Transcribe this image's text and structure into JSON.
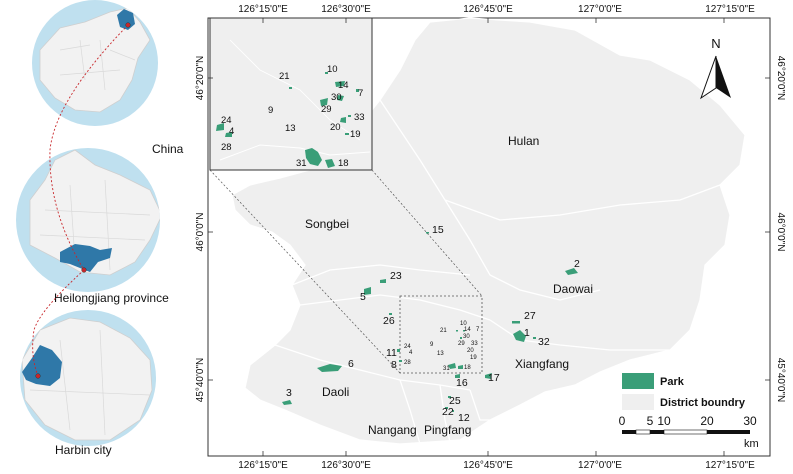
{
  "locator": {
    "china_label": "China",
    "province_label": "Heilongjiang province",
    "city_label": "Harbin city"
  },
  "axes": {
    "top_ticks": [
      "126°15'0\"E",
      "126°30'0\"E",
      "126°45'0\"E",
      "127°0'0\"E",
      "127°15'0\"E"
    ],
    "bottom_ticks": [
      "126°15'0\"E",
      "126°30'0\"E",
      "126°45'0\"E",
      "127°0'0\"E",
      "127°15'0\"E"
    ],
    "left_ticks": [
      "46°20'0\"N",
      "46°0'0\"N",
      "45°40'0\"N"
    ],
    "right_ticks": [
      "46°20'0\"N",
      "46°0'0\"N",
      "45°40'0\"N"
    ]
  },
  "districts": {
    "hulan": "Hulan",
    "songbei": "Songbei",
    "daowai": "Daowai",
    "xiangfang": "Xiangfang",
    "daoli": "Daoli",
    "nangang": "Nangang",
    "pingfang": "Pingfang"
  },
  "parks_main": {
    "p1": "1",
    "p2": "2",
    "p3": "3",
    "p5": "5",
    "p6": "6",
    "p8": "8",
    "p11": "11",
    "p12": "12",
    "p15": "15",
    "p16": "16",
    "p17": "17",
    "p22": "22",
    "p23": "23",
    "p25": "25",
    "p26": "26",
    "p27": "27",
    "p32": "32",
    "c4": "4",
    "c9": "9",
    "c10": "10",
    "c13": "13",
    "c14": "14",
    "c7": "7",
    "c18": "18",
    "c19": "19",
    "c20": "20",
    "c21": "21",
    "c24": "24",
    "c28": "28",
    "c29": "29",
    "c30": "30",
    "c31": "31",
    "c33": "33"
  },
  "parks_inset": {
    "i4": "4",
    "i7": "7",
    "i9": "9",
    "i10": "10",
    "i13": "13",
    "i14": "14",
    "i18": "18",
    "i19": "19",
    "i20": "20",
    "i21": "21",
    "i24": "24",
    "i28": "28",
    "i29": "29",
    "i30": "30",
    "i31": "31",
    "i33": "33"
  },
  "north_arrow": "N",
  "legend": {
    "park": "Park",
    "district": "District boundry"
  },
  "scale": {
    "ticks": [
      "0",
      "5",
      "10",
      "20",
      "30"
    ],
    "unit": "km"
  },
  "colors": {
    "park": "#3a9e78",
    "district_fill": "#efefef",
    "district_line": "#ffffff",
    "globe": "#bfe0ef",
    "highlight": "#2f78a8",
    "marker": "#c8262a"
  }
}
